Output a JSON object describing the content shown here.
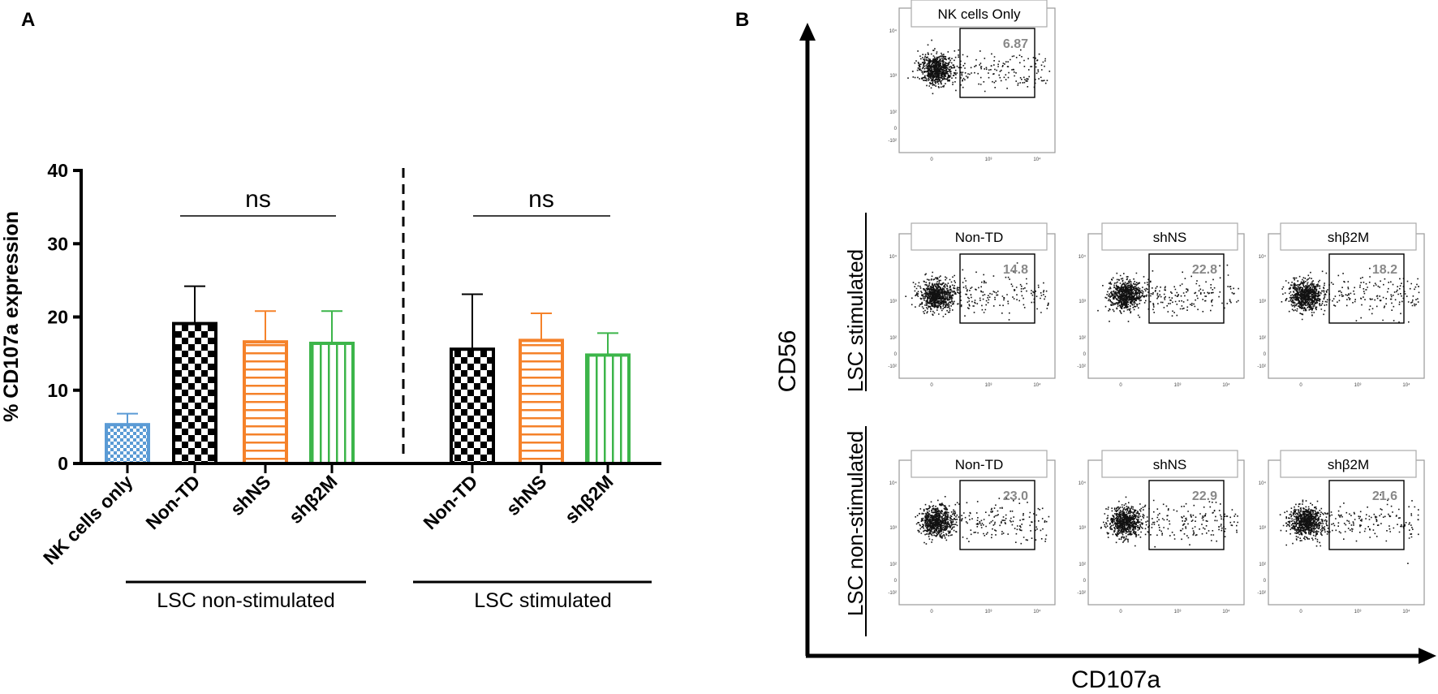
{
  "panels": {
    "a_label": "A",
    "b_label": "B"
  },
  "chart_data": [
    {
      "type": "bar",
      "title": "",
      "ylabel": "% CD107a expression",
      "xlabel": "",
      "ylim": [
        0,
        40
      ],
      "yticks": [
        0,
        10,
        20,
        30,
        40
      ],
      "categories": [
        "NK cells only",
        "Non-TD",
        "shNS",
        "shβ2M",
        "Non-TD",
        "shNS",
        "shβ2M"
      ],
      "values": [
        5.3,
        19.1,
        16.6,
        16.4,
        15.6,
        16.8,
        14.8
      ],
      "errors": [
        1.5,
        5.1,
        4.2,
        4.4,
        7.5,
        3.7,
        3.0
      ],
      "colors": [
        "#5b9bd5",
        "#000000",
        "#f5822a",
        "#3cb54a",
        "#000000",
        "#f5822a",
        "#3cb54a"
      ],
      "patterns": [
        "small-check",
        "check",
        "horizontal",
        "vertical",
        "check",
        "horizontal",
        "vertical"
      ],
      "groups": [
        {
          "label": "LSC non-stimulated",
          "members": [
            1,
            2,
            3
          ]
        },
        {
          "label": "LSC stimulated",
          "members": [
            4,
            5,
            6
          ]
        }
      ],
      "significance": [
        {
          "label": "ns",
          "from": 1,
          "to": 3
        },
        {
          "label": "ns",
          "from": 4,
          "to": 6
        }
      ]
    },
    {
      "type": "scatter",
      "subtype": "flow-cytometry-grid",
      "xlabel": "CD107a",
      "ylabel": "CD56",
      "axis_ticks": {
        "x": [
          "0",
          "10³",
          "10⁴"
        ],
        "y": [
          "10⁴",
          "10³",
          "10²",
          "0",
          "-10²"
        ]
      },
      "rows": [
        {
          "label": "",
          "plots": [
            {
              "title": "NK cells Only",
              "gate_value": "6.87"
            }
          ]
        },
        {
          "label": "LSC stimulated",
          "plots": [
            {
              "title": "Non-TD",
              "gate_value": "14.8"
            },
            {
              "title": "shNS",
              "gate_value": "22.8"
            },
            {
              "title": "shβ2M",
              "gate_value": "18.2"
            }
          ]
        },
        {
          "label": "LSC non-stimulated",
          "plots": [
            {
              "title": "Non-TD",
              "gate_value": "23.0"
            },
            {
              "title": "shNS",
              "gate_value": "22.9"
            },
            {
              "title": "shβ2M",
              "gate_value": "21.6"
            }
          ]
        }
      ]
    }
  ]
}
